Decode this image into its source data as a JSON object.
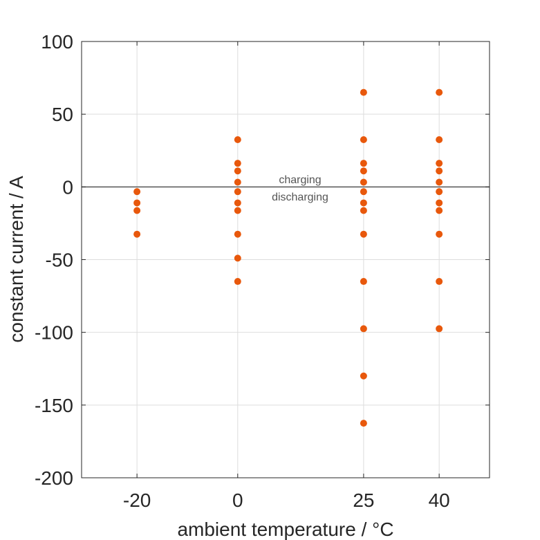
{
  "chart_data": {
    "type": "scatter",
    "title": "",
    "xlabel": "ambient temperature / °C",
    "ylabel": "constant current / A",
    "xlim": [
      -31,
      50
    ],
    "ylim": [
      -200,
      100
    ],
    "xticks": [
      -20,
      0,
      25,
      40
    ],
    "yticks": [
      100,
      50,
      0,
      -50,
      -100,
      -150,
      -200
    ],
    "xtick_labels": [
      "-20",
      "0",
      "25",
      "40"
    ],
    "ytick_labels": [
      "100",
      "50",
      "0",
      "-50",
      "-100",
      "-150",
      "-200"
    ],
    "grid": true,
    "reference_line_y": 0,
    "annotations": {
      "above": "charging",
      "below": "discharging"
    },
    "colors": {
      "marker": "#e8580c",
      "refline": "#555555",
      "grid": "#dddddd",
      "frame": "#262626"
    },
    "points": [
      {
        "x": -20,
        "y": -3.25
      },
      {
        "x": -20,
        "y": -11
      },
      {
        "x": -20,
        "y": -16.25
      },
      {
        "x": -20,
        "y": -32.5
      },
      {
        "x": 0,
        "y": 32.5
      },
      {
        "x": 0,
        "y": 16.25
      },
      {
        "x": 0,
        "y": 11
      },
      {
        "x": 0,
        "y": 3.25
      },
      {
        "x": 0,
        "y": -3.25
      },
      {
        "x": 0,
        "y": -11
      },
      {
        "x": 0,
        "y": -16.25
      },
      {
        "x": 0,
        "y": -32.5
      },
      {
        "x": 0,
        "y": -49
      },
      {
        "x": 0,
        "y": -65
      },
      {
        "x": 25,
        "y": 65
      },
      {
        "x": 25,
        "y": 32.5
      },
      {
        "x": 25,
        "y": 16.25
      },
      {
        "x": 25,
        "y": 11
      },
      {
        "x": 25,
        "y": 3.25
      },
      {
        "x": 25,
        "y": -3.25
      },
      {
        "x": 25,
        "y": -11
      },
      {
        "x": 25,
        "y": -16.25
      },
      {
        "x": 25,
        "y": -32.5
      },
      {
        "x": 25,
        "y": -65
      },
      {
        "x": 25,
        "y": -97.5
      },
      {
        "x": 25,
        "y": -130
      },
      {
        "x": 25,
        "y": -162.5
      },
      {
        "x": 40,
        "y": 65
      },
      {
        "x": 40,
        "y": 32.5
      },
      {
        "x": 40,
        "y": 16.25
      },
      {
        "x": 40,
        "y": 11
      },
      {
        "x": 40,
        "y": 3.25
      },
      {
        "x": 40,
        "y": -3.25
      },
      {
        "x": 40,
        "y": -11
      },
      {
        "x": 40,
        "y": -16.25
      },
      {
        "x": 40,
        "y": -32.5
      },
      {
        "x": 40,
        "y": -65
      },
      {
        "x": 40,
        "y": -97.5
      }
    ]
  }
}
